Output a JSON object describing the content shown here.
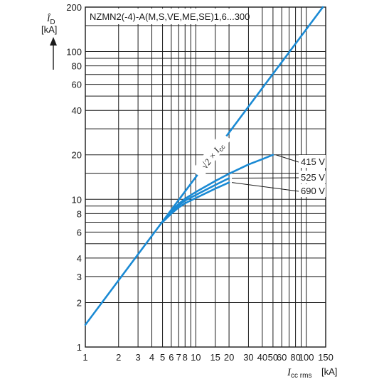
{
  "chart_data": {
    "type": "line",
    "title": "NZMN2(-4)-A(M,S,VE,ME,SE)1,6...300",
    "ylabel": "Î_D",
    "yunit": "[kA]",
    "xlabel": "I_cc rms",
    "xunit": "[kA]",
    "x_scale": "log",
    "y_scale": "log",
    "xlim": [
      1,
      150
    ],
    "ylim": [
      1,
      200
    ],
    "grid": true,
    "x_ticks": [
      1,
      2,
      3,
      4,
      5,
      6,
      7,
      8,
      9,
      10,
      15,
      20,
      30,
      40,
      50,
      60,
      70,
      80,
      90,
      100,
      150
    ],
    "x_tick_labels": [
      "1",
      "2",
      "3",
      "4",
      "5",
      "6",
      "7",
      "8",
      "10",
      "15",
      "20",
      "30",
      "40",
      "50",
      "60",
      "80",
      "100",
      "150"
    ],
    "x_tick_label_values": [
      1,
      2,
      3,
      4,
      5,
      6,
      7,
      8,
      10,
      15,
      20,
      30,
      40,
      50,
      60,
      80,
      100,
      150
    ],
    "y_ticks": [
      1,
      2,
      3,
      4,
      5,
      6,
      7,
      8,
      9,
      10,
      15,
      20,
      30,
      40,
      50,
      60,
      70,
      80,
      90,
      100,
      150,
      200
    ],
    "y_tick_labels": [
      "1",
      "2",
      "3",
      "4",
      "6",
      "8",
      "10",
      "20",
      "40",
      "60",
      "80",
      "100",
      "200"
    ],
    "y_tick_label_values": [
      1,
      2,
      3,
      4,
      6,
      8,
      10,
      20,
      40,
      60,
      80,
      100,
      200
    ],
    "reference_line": {
      "label": "√2 × I_cc",
      "x": [
        1,
        150
      ],
      "y": [
        1.414,
        212.1
      ]
    },
    "series": [
      {
        "name": "415 V",
        "x": [
          5,
          6,
          7,
          8,
          10,
          15,
          20,
          30,
          40,
          50
        ],
        "y": [
          7.0,
          8.3,
          9.3,
          10.1,
          11.2,
          13.3,
          14.9,
          17.2,
          18.7,
          20.0
        ]
      },
      {
        "name": "525 V",
        "x": [
          5,
          6,
          7,
          8,
          10,
          15,
          20
        ],
        "y": [
          7.0,
          8.2,
          9.1,
          9.8,
          10.7,
          12.5,
          13.9
        ]
      },
      {
        "name": "690 V",
        "x": [
          5,
          6,
          7,
          8,
          10,
          15,
          20
        ],
        "y": [
          7.0,
          8.0,
          8.8,
          9.4,
          10.2,
          11.8,
          13.0
        ]
      }
    ],
    "legend": [
      "415 V",
      "525 V",
      "690 V"
    ],
    "legend_placement": "right"
  },
  "colors": {
    "curve": "#1a8ad4",
    "grid": "#1a1a1a"
  }
}
